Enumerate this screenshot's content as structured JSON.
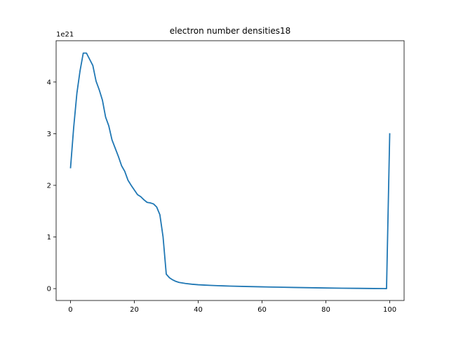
{
  "chart_data": {
    "type": "line",
    "title": "electron number densities18",
    "offset_text": "1e21",
    "xlabel": "",
    "ylabel": "",
    "xlim": [
      -4.5,
      104.5
    ],
    "ylim": [
      -0.23,
      4.8
    ],
    "x_ticks": [
      0,
      20,
      40,
      60,
      80,
      100
    ],
    "x_tick_labels": [
      "0",
      "20",
      "40",
      "60",
      "80",
      "100"
    ],
    "y_ticks": [
      0,
      1,
      2,
      3,
      4
    ],
    "y_tick_labels": [
      "0",
      "1",
      "2",
      "3",
      "4"
    ],
    "grid": false,
    "legend": "none",
    "series_color": "#1f77b4",
    "series": [
      {
        "x": [
          0,
          1,
          2,
          3,
          4,
          5,
          6,
          7,
          8,
          9,
          10,
          11,
          12,
          13,
          14,
          15,
          16,
          17,
          18,
          19,
          20,
          21,
          22,
          23,
          24,
          25,
          26,
          27,
          28,
          29,
          30,
          31,
          32,
          33,
          34,
          35,
          36,
          38,
          40,
          42,
          44,
          46,
          48,
          50,
          55,
          60,
          65,
          70,
          75,
          80,
          85,
          90,
          95,
          98,
          99,
          100
        ],
        "y": [
          2.33,
          3.12,
          3.78,
          4.22,
          4.56,
          4.56,
          4.44,
          4.32,
          4.02,
          3.85,
          3.65,
          3.32,
          3.15,
          2.88,
          2.72,
          2.56,
          2.38,
          2.27,
          2.1,
          2.0,
          1.91,
          1.82,
          1.78,
          1.72,
          1.67,
          1.66,
          1.64,
          1.58,
          1.43,
          1.0,
          0.28,
          0.21,
          0.17,
          0.14,
          0.12,
          0.11,
          0.1,
          0.085,
          0.075,
          0.068,
          0.062,
          0.057,
          0.053,
          0.049,
          0.041,
          0.034,
          0.028,
          0.022,
          0.017,
          0.012,
          0.008,
          0.005,
          0.002,
          0.001,
          0.0,
          3.01
        ]
      }
    ]
  }
}
